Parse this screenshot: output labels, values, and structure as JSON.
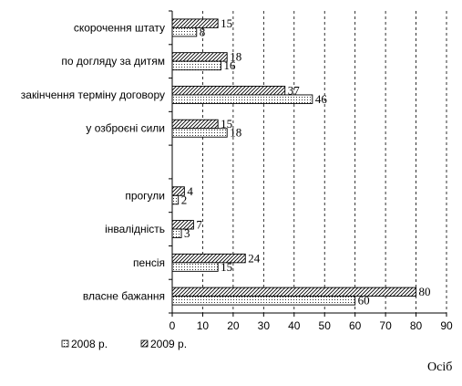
{
  "chart_data": {
    "type": "bar",
    "orientation": "horizontal",
    "categories": [
      "скорочення штату",
      "по догляду за дитям",
      "закінчення терміну договору",
      "у озброєні сили",
      "",
      "прогули",
      "інвалідність",
      "пенсія",
      "власне бажання"
    ],
    "series": [
      {
        "name": "2009 р.",
        "pattern": "hatched",
        "values": [
          15,
          18,
          37,
          15,
          null,
          4,
          7,
          24,
          80
        ]
      },
      {
        "name": "2008 р.",
        "pattern": "dotted",
        "values": [
          8,
          16,
          46,
          18,
          null,
          2,
          3,
          15,
          60
        ]
      }
    ],
    "xlim": [
      0,
      90
    ],
    "xticks": [
      0,
      10,
      20,
      30,
      40,
      50,
      60,
      70,
      80,
      90
    ],
    "xlabel": "Осіб",
    "grid": "vertical-dashed",
    "legend_position": "bottom-left",
    "legend_order": [
      "2008 р.",
      "2009 р."
    ]
  }
}
